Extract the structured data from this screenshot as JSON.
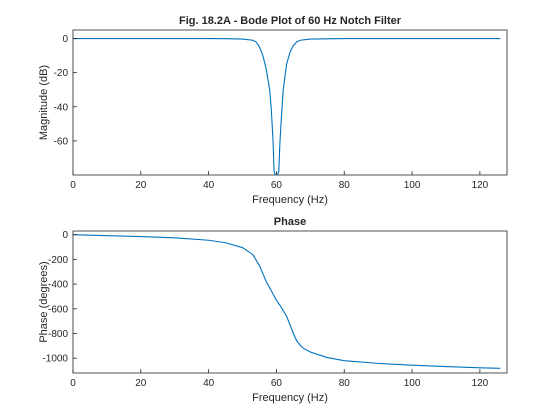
{
  "chart_data": [
    {
      "type": "line",
      "title": "Fig. 18.2A - Bode Plot of 60 Hz Notch Filter",
      "xlabel": "Frequency (Hz)",
      "ylabel": "Magnitude (dB)",
      "xlim": [
        0,
        128
      ],
      "ylim": [
        -80,
        5
      ],
      "xticks": [
        0,
        20,
        40,
        60,
        80,
        100,
        120
      ],
      "yticks": [
        0,
        -20,
        -40,
        -60
      ],
      "grid": true,
      "color": "#0072bd",
      "series": [
        {
          "x": [
            0,
            10,
            20,
            30,
            40,
            45,
            50,
            53,
            54,
            55,
            56,
            57,
            58,
            58.5,
            59,
            59.3,
            59.7,
            60,
            60.3,
            60.7,
            61,
            61.5,
            62,
            63,
            64,
            65,
            66,
            67,
            70,
            80,
            90,
            100,
            110,
            120,
            126
          ],
          "y": [
            0,
            0,
            0,
            0,
            0,
            -0.1,
            -0.3,
            -1,
            -2,
            -5,
            -10,
            -18,
            -30,
            -42,
            -60,
            -78,
            -80,
            -80,
            -80,
            -78,
            -62,
            -45,
            -30,
            -15,
            -8,
            -4,
            -2,
            -1,
            -0.3,
            0,
            0,
            0,
            0,
            0,
            0
          ]
        }
      ]
    },
    {
      "type": "line",
      "title": "Phase",
      "xlabel": "Frequency (Hz)",
      "ylabel": "Phase (degrees)",
      "xlim": [
        0,
        128
      ],
      "ylim": [
        -1120,
        30
      ],
      "xticks": [
        0,
        20,
        40,
        60,
        80,
        100,
        120
      ],
      "yticks": [
        0,
        -200,
        -400,
        -600,
        -800,
        -1000
      ],
      "grid": true,
      "color": "#0072bd",
      "series": [
        {
          "x": [
            0,
            10,
            20,
            30,
            40,
            45,
            50,
            53,
            55,
            57,
            59,
            60,
            61,
            63,
            65,
            66,
            67,
            68,
            70,
            75,
            80,
            90,
            100,
            110,
            120,
            126
          ],
          "y": [
            0,
            -8,
            -15,
            -25,
            -45,
            -65,
            -105,
            -160,
            -250,
            -380,
            -480,
            -530,
            -570,
            -660,
            -800,
            -860,
            -895,
            -920,
            -950,
            -995,
            -1020,
            -1042,
            -1057,
            -1068,
            -1078,
            -1082
          ]
        }
      ]
    }
  ]
}
